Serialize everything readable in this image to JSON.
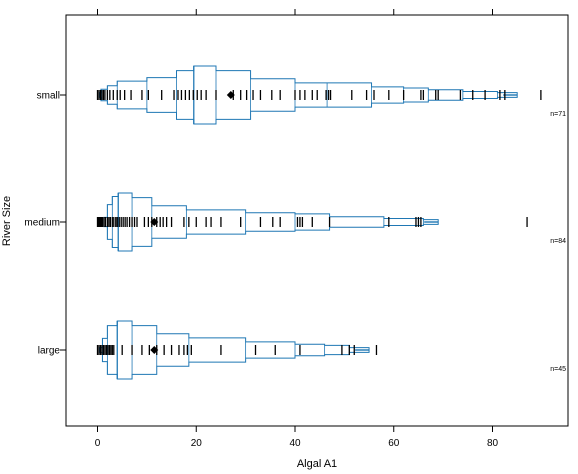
{
  "chart_data": {
    "type": "bpplot",
    "xlabel": "Algal A1",
    "ylabel": "River Size",
    "xlim": [
      -6,
      96
    ],
    "xticks": [
      0,
      20,
      40,
      60,
      80
    ],
    "xtick_labels": [
      "0",
      "20",
      "40",
      "60",
      "80"
    ],
    "categories": [
      "small",
      "medium",
      "large"
    ],
    "n_labels": [
      "n=71",
      "n=84",
      "n=45"
    ],
    "grid": false,
    "line_color": "#1f77b4",
    "series": [
      {
        "category": "small",
        "n": 71,
        "median": 19.5,
        "mean": 27,
        "max": 89.8,
        "quantile_profile": [
          {
            "x": 0.4,
            "h": 0.02
          },
          {
            "x": 0.7,
            "h": 0.05
          },
          {
            "x": 2.0,
            "h": 0.08
          },
          {
            "x": 4.0,
            "h": 0.12
          },
          {
            "x": 10.0,
            "h": 0.15
          },
          {
            "x": 16.0,
            "h": 0.21
          },
          {
            "x": 19.5,
            "h": 0.25
          },
          {
            "x": 24.0,
            "h": 0.21
          },
          {
            "x": 31.0,
            "h": 0.14
          },
          {
            "x": 40.0,
            "h": 0.105
          },
          {
            "x": 46.5,
            "h": 0.105
          },
          {
            "x": 55.5,
            "h": 0.07
          },
          {
            "x": 62.0,
            "h": 0.06
          },
          {
            "x": 67.0,
            "h": 0.045
          },
          {
            "x": 74.0,
            "h": 0.03
          },
          {
            "x": 81.0,
            "h": 0.02
          },
          {
            "x": 85.0,
            "h": 0.0
          }
        ],
        "observations": [
          0.0,
          0.3,
          0.6,
          0.9,
          1.2,
          1.5,
          2.0,
          2.5,
          3.2,
          4.0,
          4.6,
          5.5,
          6.8,
          9.0,
          10.3,
          13.0,
          15.5,
          16.3,
          17.0,
          17.8,
          18.6,
          19.4,
          20.2,
          21.0,
          22.0,
          24.0,
          27.5,
          29.0,
          30.2,
          31.5,
          33.0,
          35.3,
          37.0,
          40.0,
          41.0,
          42.0,
          43.5,
          44.5,
          46.3,
          46.8,
          47.2,
          51.5,
          54.5,
          56.0,
          59.0,
          62.0,
          65.5,
          66.0,
          68.5,
          69.0,
          73.5,
          76.0,
          78.5,
          81.5,
          82.5,
          89.8
        ]
      },
      {
        "category": "medium",
        "n": 84,
        "median": 4.2,
        "mean": 11.5,
        "max": 87.0,
        "quantile_profile": [
          {
            "x": 1.3,
            "h": 0.04
          },
          {
            "x": 2.0,
            "h": 0.15
          },
          {
            "x": 3.0,
            "h": 0.22
          },
          {
            "x": 4.2,
            "h": 0.25
          },
          {
            "x": 7.0,
            "h": 0.21
          },
          {
            "x": 11.0,
            "h": 0.14
          },
          {
            "x": 18.0,
            "h": 0.105
          },
          {
            "x": 30.0,
            "h": 0.08
          },
          {
            "x": 40.0,
            "h": 0.07
          },
          {
            "x": 47.0,
            "h": 0.045
          },
          {
            "x": 58.0,
            "h": 0.03
          },
          {
            "x": 66.0,
            "h": 0.02
          },
          {
            "x": 69.0,
            "h": 0.0
          }
        ],
        "observations": [
          0.0,
          0.2,
          0.4,
          0.6,
          0.8,
          1.0,
          1.3,
          1.6,
          2.0,
          2.3,
          2.6,
          3.0,
          3.3,
          3.7,
          4.0,
          4.4,
          4.8,
          5.2,
          5.6,
          6.0,
          6.5,
          7.0,
          7.5,
          8.0,
          9.5,
          10.3,
          11.0,
          12.0,
          12.7,
          13.3,
          14.0,
          15.0,
          17.5,
          18.5,
          20.0,
          22.0,
          23.0,
          25.0,
          29.0,
          33.0,
          35.5,
          37.0,
          40.5,
          41.0,
          41.5,
          43.5,
          47.0,
          59.0,
          64.5,
          65.0,
          65.5,
          87.0
        ]
      },
      {
        "category": "large",
        "n": 45,
        "median": 4.0,
        "mean": 11.5,
        "max": 56.5,
        "quantile_profile": [
          {
            "x": 0.5,
            "h": 0.02
          },
          {
            "x": 1.0,
            "h": 0.1
          },
          {
            "x": 2.0,
            "h": 0.21
          },
          {
            "x": 4.0,
            "h": 0.25
          },
          {
            "x": 7.0,
            "h": 0.21
          },
          {
            "x": 12.0,
            "h": 0.14
          },
          {
            "x": 18.5,
            "h": 0.105
          },
          {
            "x": 30.0,
            "h": 0.07
          },
          {
            "x": 40.0,
            "h": 0.05
          },
          {
            "x": 46.0,
            "h": 0.04
          },
          {
            "x": 51.0,
            "h": 0.02
          },
          {
            "x": 55.0,
            "h": 0.0
          }
        ],
        "observations": [
          0.0,
          0.3,
          0.6,
          0.9,
          1.2,
          1.5,
          1.8,
          2.1,
          2.4,
          2.7,
          3.0,
          3.3,
          5.0,
          7.0,
          9.0,
          10.5,
          12.0,
          13.5,
          15.0,
          16.5,
          17.5,
          18.2,
          19.0,
          25.0,
          32.0,
          36.0,
          41.0,
          49.5,
          51.0,
          52.0,
          56.5
        ]
      }
    ]
  }
}
